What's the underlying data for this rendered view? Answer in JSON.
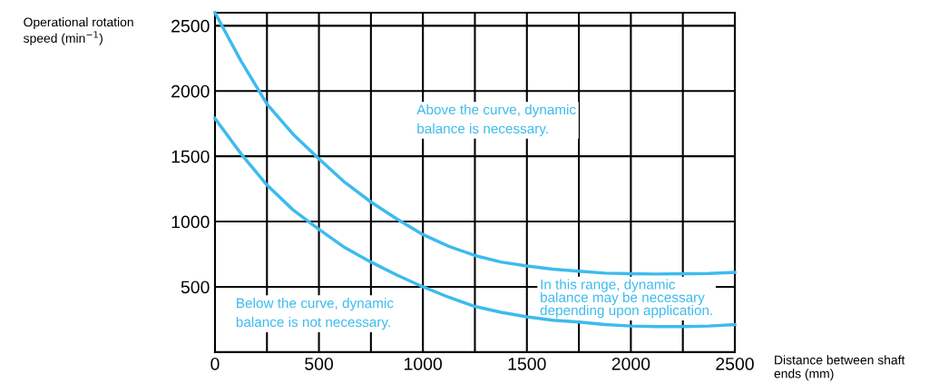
{
  "chart_data": {
    "type": "line",
    "xlabel": "Distance between shaft\nends (mm)",
    "ylabel": "Operational rotation\nspeed (min$^{−1}$)",
    "xlim": [
      0,
      2500
    ],
    "xticks": [
      0,
      500,
      1000,
      1500,
      2000,
      2500
    ],
    "ylim": [
      0,
      2600
    ],
    "yticks": [
      500,
      1000,
      1500,
      2000,
      2500
    ],
    "grid": true,
    "legend": false,
    "marker": "none",
    "line_style": "solid",
    "x": [
      0,
      125,
      250,
      375,
      500,
      625,
      750,
      875,
      1000,
      1125,
      1250,
      1375,
      1500,
      1625,
      1750,
      1875,
      2000,
      2125,
      2250,
      2375,
      2500
    ],
    "series": [
      {
        "color": "#3dbbee",
        "values": [
          2600,
          2230,
          1900,
          1670,
          1480,
          1300,
          1150,
          1020,
          900,
          810,
          740,
          690,
          660,
          635,
          620,
          605,
          600,
          598,
          600,
          602,
          610
        ]
      },
      {
        "color": "#3dbbee",
        "values": [
          1790,
          1520,
          1280,
          1090,
          940,
          800,
          690,
          590,
          500,
          420,
          350,
          305,
          270,
          245,
          230,
          212,
          200,
          195,
          195,
          200,
          210
        ]
      }
    ],
    "annotations": [
      "Above the curve, dynamic\nbalance is necessary.",
      "Below the curve, dynamic\nbalance is not necessary.",
      "In this range, dynamic\nbalance may be necessary\ndepending upon application."
    ]
  }
}
